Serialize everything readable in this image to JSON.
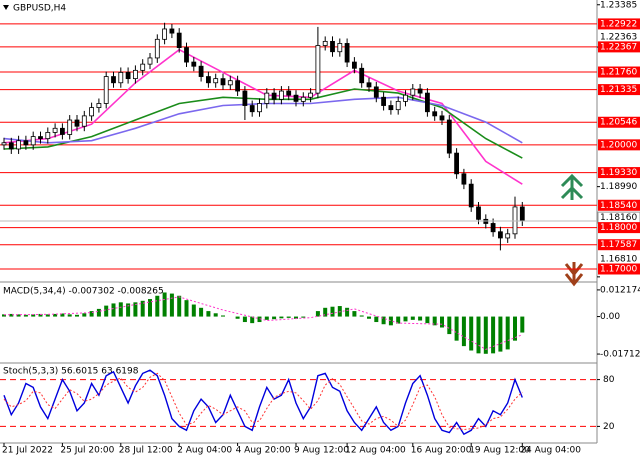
{
  "chart_data": [
    {
      "type": "candlestick",
      "title": "GBPUSD,H4",
      "categories": [
        "21 Jul 2022",
        null,
        null,
        null,
        null,
        null,
        null,
        null,
        "25 Jul 20:00",
        null,
        null,
        null,
        null,
        null,
        null,
        null,
        "28 Jul 12:00",
        null,
        null,
        null,
        null,
        null,
        null,
        null,
        "2 Aug 04:00",
        null,
        null,
        null,
        null,
        null,
        null,
        null,
        "4 Aug 20:00",
        null,
        null,
        null,
        null,
        null,
        null,
        null,
        "9 Aug 12:00",
        null,
        null,
        null,
        null,
        null,
        null,
        "12 Aug 04:00",
        null,
        null,
        null,
        null,
        null,
        null,
        null,
        null,
        "16 Aug 20:00",
        null,
        null,
        null,
        null,
        null,
        null,
        null,
        "19 Aug 12:00",
        null,
        null,
        null,
        null,
        null,
        null,
        "24 Aug 04:00"
      ],
      "open": [
        1.2,
        1.2005,
        1.199,
        1.201,
        1.2,
        1.202,
        1.2015,
        1.203,
        1.204,
        1.2025,
        1.206,
        1.2045,
        1.207,
        1.209,
        1.21,
        1.2165,
        1.215,
        1.2175,
        1.216,
        1.218,
        1.2195,
        1.221,
        1.2255,
        1.228,
        1.227,
        1.2235,
        1.22,
        1.219,
        1.2165,
        1.215,
        1.216,
        1.2145,
        1.2155,
        1.213,
        1.2095,
        1.208,
        1.21,
        1.2125,
        1.211,
        1.213,
        1.212,
        1.2105,
        1.2115,
        1.2125,
        1.224,
        1.225,
        1.2225,
        1.2245,
        1.22,
        1.2185,
        1.215,
        1.214,
        1.2115,
        1.2095,
        1.2085,
        1.2105,
        1.212,
        1.2135,
        1.2125,
        1.208,
        1.207,
        1.206,
        1.198,
        1.193,
        1.1905,
        1.185,
        1.182,
        1.181,
        1.179,
        1.1775,
        1.1785,
        1.185
      ],
      "high": [
        1.2017,
        1.2017,
        1.2022,
        1.2022,
        1.2032,
        1.2032,
        1.2042,
        1.2052,
        1.2052,
        1.2072,
        1.2072,
        1.2082,
        1.2102,
        1.2112,
        1.2177,
        1.2177,
        1.2187,
        1.2187,
        1.2192,
        1.2207,
        1.2222,
        1.2267,
        1.2295,
        1.2292,
        1.2282,
        1.2247,
        1.2212,
        1.2202,
        1.2177,
        1.2172,
        1.2172,
        1.2167,
        1.2167,
        1.2142,
        1.2107,
        1.2112,
        1.2137,
        1.2137,
        1.2142,
        1.2142,
        1.2132,
        1.2127,
        1.2137,
        1.2285,
        1.2262,
        1.2262,
        1.2257,
        1.2257,
        1.2212,
        1.2197,
        1.2162,
        1.2152,
        1.2127,
        1.2107,
        1.2117,
        1.2132,
        1.2147,
        1.2147,
        1.2137,
        1.2092,
        1.2082,
        1.2072,
        1.1992,
        1.1942,
        1.1917,
        1.1862,
        1.1832,
        1.1822,
        1.1802,
        1.1797,
        1.1875,
        1.1862
      ],
      "low": [
        1.1988,
        1.1978,
        1.1978,
        1.1988,
        1.1988,
        1.2003,
        1.2003,
        1.2018,
        1.2013,
        1.2013,
        1.2033,
        1.2033,
        1.2058,
        1.2078,
        1.2088,
        1.2138,
        1.2138,
        1.2148,
        1.2148,
        1.2168,
        1.2183,
        1.2198,
        1.2243,
        1.2258,
        1.2223,
        1.2188,
        1.2178,
        1.2153,
        1.2138,
        1.2138,
        1.2133,
        1.2133,
        1.2118,
        1.206,
        1.2068,
        1.2068,
        1.2088,
        1.2098,
        1.2098,
        1.2108,
        1.2093,
        1.2093,
        1.2103,
        1.2113,
        1.2228,
        1.2213,
        1.2213,
        1.2188,
        1.2173,
        1.2138,
        1.2128,
        1.2103,
        1.2083,
        1.2073,
        1.2073,
        1.2093,
        1.2108,
        1.2113,
        1.2068,
        1.2058,
        1.2048,
        1.1968,
        1.1918,
        1.1893,
        1.1838,
        1.1808,
        1.1798,
        1.1778,
        1.1745,
        1.1763,
        1.1773,
        1.1804
      ],
      "close": [
        1.2005,
        1.199,
        1.201,
        1.2,
        1.202,
        1.2015,
        1.203,
        1.204,
        1.2025,
        1.206,
        1.2045,
        1.207,
        1.209,
        1.21,
        1.2165,
        1.215,
        1.2175,
        1.216,
        1.218,
        1.2195,
        1.221,
        1.2255,
        1.228,
        1.227,
        1.2235,
        1.22,
        1.219,
        1.2165,
        1.215,
        1.216,
        1.2145,
        1.2155,
        1.213,
        1.2095,
        1.208,
        1.21,
        1.2125,
        1.211,
        1.213,
        1.212,
        1.2105,
        1.2115,
        1.2125,
        1.224,
        1.225,
        1.2225,
        1.2245,
        1.22,
        1.2185,
        1.215,
        1.214,
        1.2115,
        1.2095,
        1.2085,
        1.2105,
        1.212,
        1.2135,
        1.2125,
        1.208,
        1.207,
        1.206,
        1.198,
        1.193,
        1.1905,
        1.185,
        1.182,
        1.181,
        1.179,
        1.1775,
        1.1785,
        1.185,
        1.1816
      ],
      "moving_averages": [
        {
          "color": "#ff33cc",
          "x": [
            0,
            6,
            12,
            18,
            24,
            30,
            36,
            42,
            48,
            54,
            60,
            66,
            71
          ],
          "values": [
            1.2005,
            1.2015,
            1.205,
            1.215,
            1.223,
            1.2175,
            1.212,
            1.2115,
            1.218,
            1.213,
            1.21,
            1.196,
            1.1905
          ]
        },
        {
          "color": "#1a8c1a",
          "x": [
            0,
            6,
            12,
            18,
            24,
            30,
            36,
            42,
            48,
            54,
            60,
            66,
            71
          ],
          "values": [
            1.199,
            1.1995,
            1.202,
            1.206,
            1.21,
            1.2115,
            1.211,
            1.211,
            1.2135,
            1.2125,
            1.209,
            1.2015,
            1.1968
          ]
        },
        {
          "color": "#7b68ee",
          "x": [
            0,
            6,
            12,
            18,
            24,
            30,
            36,
            42,
            48,
            54,
            60,
            66,
            71
          ],
          "values": [
            1.2015,
            1.2005,
            1.201,
            1.204,
            1.2075,
            1.2095,
            1.21,
            1.21,
            1.211,
            1.2115,
            1.2095,
            1.2055,
            1.2005
          ]
        }
      ],
      "levels": {
        "color": "#ff0000",
        "values": [
          1.22922,
          1.22367,
          {
            "value": 1.2176,
            "label": "1.21760"
          },
          1.21335,
          1.20546,
          {
            "value": 1.2,
            "label": "1.20000"
          },
          {
            "value": 1.1933,
            "label": "1.19330"
          },
          {
            "value": 1.1854,
            "label": "1.18540"
          },
          {
            "value": 1.18,
            "label": "1.18000"
          },
          1.17587,
          {
            "value": 1.17,
            "label": "1.17000"
          }
        ]
      },
      "current_price": {
        "value": 1.1816,
        "label": "1.18160"
      },
      "ylim": [
        1.1671,
        1.235
      ],
      "yticks": [
        1.23385,
        1.22363,
        {
          "value": 1.1899,
          "label": "1.18990"
        },
        {
          "value": 1.1681,
          "label": "1.16810"
        }
      ]
    },
    {
      "type": "bar",
      "title": "MACD(5,34,4) -0.007302 -0.008265",
      "color": "#008000",
      "values": [
        0.001,
        0.0012,
        0.001,
        0.0008,
        0.001,
        0.0012,
        0.001,
        0.0012,
        0.0014,
        0.001,
        0.0008,
        0.0015,
        0.0025,
        0.0035,
        0.005,
        0.006,
        0.0065,
        0.006,
        0.0065,
        0.0072,
        0.008,
        0.0095,
        0.011,
        0.0105,
        0.0095,
        0.0075,
        0.0055,
        0.004,
        0.0025,
        0.0015,
        0.0005,
        0.0,
        -0.001,
        -0.0025,
        -0.003,
        -0.0025,
        -0.0015,
        -0.0012,
        -0.0008,
        -0.0006,
        -0.001,
        -0.0005,
        0.0,
        0.0025,
        0.004,
        0.0045,
        0.0048,
        0.004,
        0.0025,
        0.0005,
        -0.001,
        -0.0025,
        -0.0035,
        -0.004,
        -0.0032,
        -0.0022,
        -0.0015,
        -0.0018,
        -0.003,
        -0.004,
        -0.005,
        -0.008,
        -0.011,
        -0.0135,
        -0.0155,
        -0.0168,
        -0.017,
        -0.0168,
        -0.016,
        -0.015,
        -0.011,
        -0.0073
      ],
      "signal": {
        "color": "#ff33cc",
        "x": [
          0,
          6,
          12,
          18,
          24,
          30,
          36,
          42,
          48,
          54,
          60,
          66,
          71
        ],
        "values": [
          0.0008,
          0.001,
          0.0018,
          0.0055,
          0.009,
          0.003,
          -0.0018,
          -0.0005,
          0.0035,
          -0.003,
          -0.0035,
          -0.015,
          -0.0083
        ]
      },
      "ylim": [
        -0.02075,
        0.01533
      ],
      "yticks": [
        0.012174,
        {
          "value": 0,
          "label": "0.00"
        },
        -0.017122
      ]
    },
    {
      "type": "line",
      "title": "Stoch(5,3,3) 56.6015 63.6198",
      "series": [
        {
          "color": "#0000dd",
          "values": [
            60,
            35,
            50,
            75,
            70,
            45,
            30,
            55,
            80,
            65,
            40,
            50,
            75,
            60,
            85,
            90,
            70,
            50,
            72,
            88,
            92,
            85,
            60,
            30,
            20,
            15,
            40,
            55,
            45,
            25,
            35,
            60,
            40,
            20,
            15,
            45,
            70,
            55,
            60,
            80,
            50,
            30,
            45,
            85,
            88,
            70,
            65,
            40,
            25,
            15,
            30,
            45,
            25,
            15,
            20,
            50,
            75,
            85,
            60,
            30,
            15,
            12,
            25,
            10,
            15,
            30,
            20,
            40,
            35,
            50,
            80,
            57
          ]
        },
        {
          "color": "#ff3333",
          "dashed": true,
          "values": [
            55,
            45,
            48,
            53,
            65,
            63,
            48,
            43,
            55,
            67,
            62,
            52,
            55,
            62,
            73,
            78,
            82,
            70,
            64,
            70,
            83,
            88,
            79,
            58,
            37,
            22,
            25,
            37,
            47,
            42,
            35,
            40,
            45,
            40,
            25,
            27,
            43,
            57,
            62,
            65,
            63,
            53,
            42,
            53,
            73,
            81,
            74,
            58,
            43,
            27,
            23,
            30,
            33,
            28,
            20,
            28,
            48,
            70,
            73,
            58,
            35,
            19,
            17,
            16,
            17,
            18,
            22,
            30,
            32,
            42,
            55,
            64
          ]
        }
      ],
      "ylim": [
        0,
        100
      ],
      "yticks": [
        20,
        80
      ],
      "grid": true,
      "grid_color": "#ff0000"
    }
  ]
}
